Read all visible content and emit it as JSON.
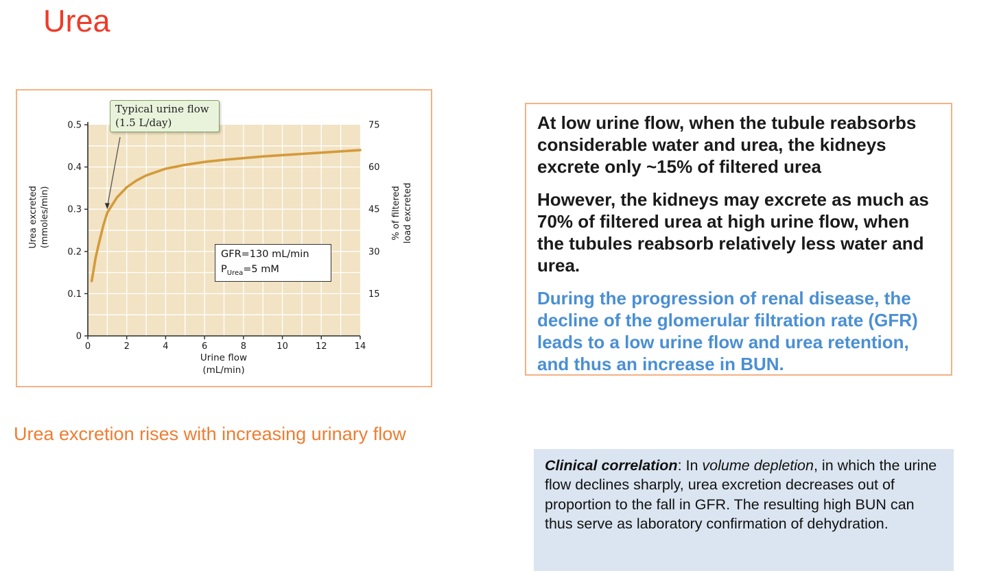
{
  "colors": {
    "title": "#ee3b28",
    "caption": "#ed7d31",
    "panel_border": "#f4b183",
    "blue_text": "#4a8fd4",
    "clinical_bg": "#dbe5f1",
    "curve": "#d49a3a",
    "plot_bg": "#f1e3c3",
    "annotation_bg": "#e9f3dc",
    "annotation_border": "#7f9e5e"
  },
  "title": "Urea",
  "caption": "Urea excretion rises with increasing urinary flow",
  "figure": {
    "annotation_line1": "Typical urine flow",
    "annotation_line2": "(1.5 L/day)",
    "gfr_line1": "GFR=130 mL/min",
    "gfr_p": "P",
    "gfr_sub": "Urea",
    "gfr_rest": "=5 mM",
    "xlabel_line1": "Urine flow",
    "xlabel_line2": "(mL/min)",
    "ylabel_left_line1": "Urea excreted",
    "ylabel_left_line2": "(mmoles/min)",
    "ylabel_right_line1": "% of filtered",
    "ylabel_right_line2": "load excreted"
  },
  "info_box": {
    "p1": "At low urine flow, when the tubule reabsorbs considerable water and urea, the kidneys excrete only ~15% of filtered urea",
    "p2": "However, the kidneys may excrete as much as 70% of filtered urea at high urine flow, when the tubules reabsorb relatively less water and urea.",
    "p3": "During the progression of renal disease, the decline of the glomerular filtration rate (GFR) leads to a low urine flow and urea retention, and thus an increase in BUN."
  },
  "clinical": {
    "lead": "Clinical correlation",
    "sep": ": In ",
    "italic_term": "volume depletion",
    "rest": ", in which the urine flow declines sharply, urea excretion decreases out of proportion to the fall in GFR. The resulting high BUN can thus serve as laboratory confirmation of dehydration."
  },
  "chart_data": {
    "type": "line",
    "title": "",
    "xlabel": "Urine flow (mL/min)",
    "ylabel_left": "Urea excreted (mmoles/min)",
    "ylabel_right": "% of filtered load excreted",
    "xlim": [
      0,
      14
    ],
    "ylim_left": [
      0,
      0.5
    ],
    "ylim_right": [
      0,
      75
    ],
    "x_ticks": [
      0,
      2,
      4,
      6,
      8,
      10,
      12,
      14
    ],
    "y_ticks_left": [
      0,
      0.1,
      0.2,
      0.3,
      0.4,
      0.5
    ],
    "y_ticks_right": [
      15,
      30,
      45,
      60,
      75
    ],
    "x_grid_step": 1,
    "y_grid_step": 0.05,
    "grid": true,
    "legend": false,
    "annotation": {
      "text": "Typical urine flow (1.5 L/day)",
      "points_to": {
        "x": 1,
        "y": 0.3
      }
    },
    "inset_label": "GFR=130 mL/min, P(Urea)=5 mM",
    "series": [
      {
        "name": "Urea excreted (mmoles/min)",
        "x": [
          0.2,
          0.4,
          0.6,
          0.8,
          1,
          1.5,
          2,
          2.5,
          3,
          4,
          5,
          6,
          7,
          8,
          9,
          10,
          11,
          12,
          13,
          14
        ],
        "y": [
          0.13,
          0.185,
          0.225,
          0.262,
          0.292,
          0.328,
          0.352,
          0.368,
          0.38,
          0.396,
          0.405,
          0.412,
          0.417,
          0.421,
          0.425,
          0.428,
          0.431,
          0.434,
          0.437,
          0.44
        ]
      }
    ]
  }
}
